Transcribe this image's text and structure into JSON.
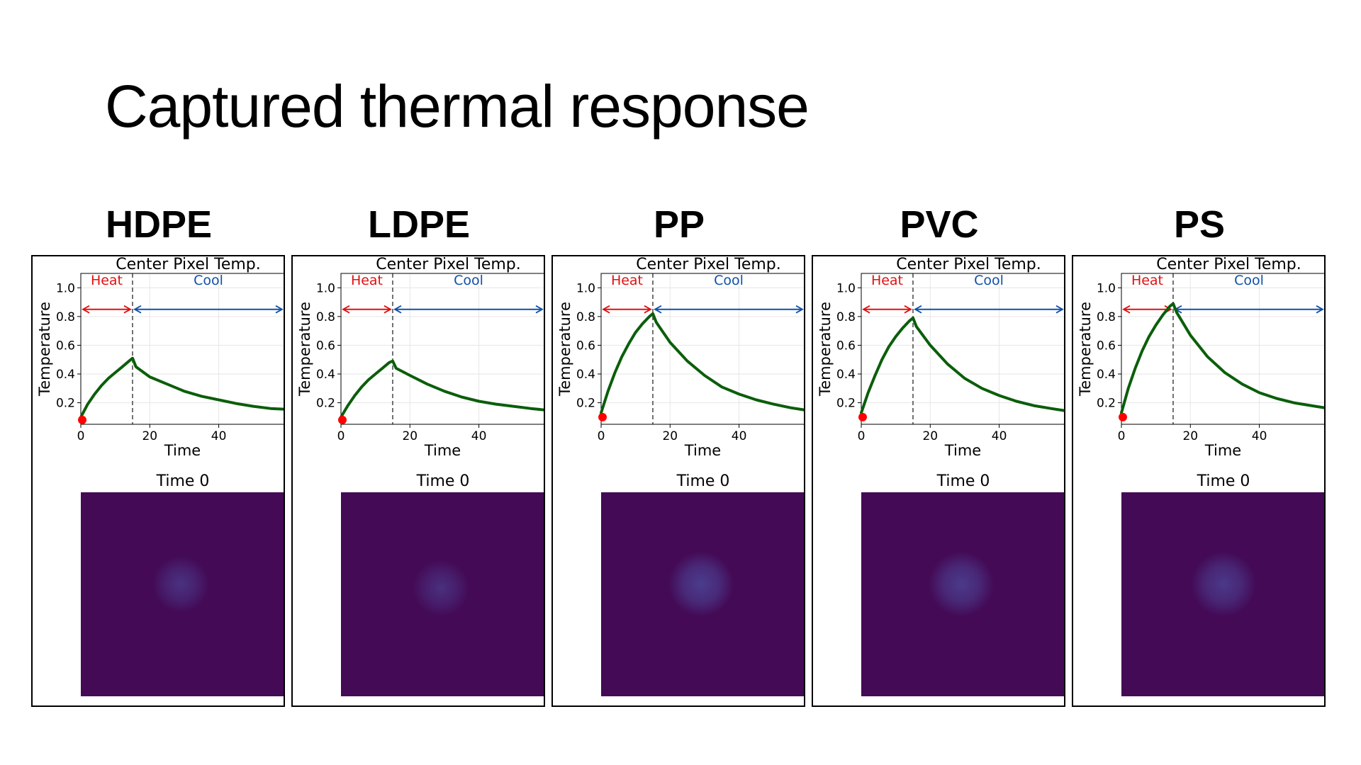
{
  "slide": {
    "title": "Captured thermal response"
  },
  "colors": {
    "curve": "#0b5e0b",
    "heat": "#e01010",
    "cool": "#1050a8",
    "marker": "#ff0000",
    "thermal_background": "#440a56",
    "thermal_spot": "#4b3e8e"
  },
  "chart_data": [
    {
      "type": "line",
      "material": "HDPE",
      "title": "Center Pixel Temp.",
      "xlabel": "Time",
      "ylabel": "Temperature",
      "xlim": [
        0,
        59
      ],
      "ylim": [
        0.05,
        1.1
      ],
      "xticks": [
        0,
        20,
        40
      ],
      "yticks": [
        0.2,
        0.4,
        0.6,
        0.8,
        1.0
      ],
      "grid": true,
      "phase_split": 15,
      "phases": {
        "heat": "Heat",
        "cool": "Cool"
      },
      "marker": {
        "x": 0,
        "y": 0.08
      },
      "series": [
        {
          "x": [
            0,
            2,
            4,
            6,
            8,
            10,
            12,
            14,
            15,
            16,
            20,
            25,
            30,
            35,
            40,
            45,
            50,
            55,
            59
          ],
          "values": [
            0.1,
            0.19,
            0.26,
            0.32,
            0.37,
            0.41,
            0.45,
            0.49,
            0.51,
            0.45,
            0.38,
            0.33,
            0.28,
            0.245,
            0.22,
            0.195,
            0.175,
            0.16,
            0.155
          ]
        }
      ],
      "image": {
        "title": "Time 0",
        "spot": {
          "cx": 0.49,
          "cy": 0.45,
          "r": 0.14,
          "intensity": 0.42
        }
      }
    },
    {
      "type": "line",
      "material": "LDPE",
      "title": "Center Pixel Temp.",
      "xlabel": "Time",
      "ylabel": "Temperature",
      "xlim": [
        0,
        59
      ],
      "ylim": [
        0.05,
        1.1
      ],
      "xticks": [
        0,
        20,
        40
      ],
      "yticks": [
        0.2,
        0.4,
        0.6,
        0.8,
        1.0
      ],
      "grid": true,
      "phase_split": 15,
      "phases": {
        "heat": "Heat",
        "cool": "Cool"
      },
      "marker": {
        "x": 0,
        "y": 0.08
      },
      "series": [
        {
          "x": [
            0,
            2,
            4,
            6,
            8,
            10,
            12,
            14,
            15,
            16,
            20,
            25,
            30,
            35,
            40,
            45,
            50,
            55,
            59
          ],
          "values": [
            0.1,
            0.18,
            0.25,
            0.31,
            0.36,
            0.4,
            0.44,
            0.48,
            0.49,
            0.44,
            0.39,
            0.33,
            0.28,
            0.24,
            0.21,
            0.19,
            0.175,
            0.16,
            0.15
          ]
        }
      ],
      "image": {
        "title": "Time 0",
        "spot": {
          "cx": 0.49,
          "cy": 0.47,
          "r": 0.14,
          "intensity": 0.38
        }
      }
    },
    {
      "type": "line",
      "material": "PP",
      "title": "Center Pixel Temp.",
      "xlabel": "Time",
      "ylabel": "Temperature",
      "xlim": [
        0,
        59
      ],
      "ylim": [
        0.05,
        1.1
      ],
      "xticks": [
        0,
        20,
        40
      ],
      "yticks": [
        0.2,
        0.4,
        0.6,
        0.8,
        1.0
      ],
      "grid": true,
      "phase_split": 15,
      "phases": {
        "heat": "Heat",
        "cool": "Cool"
      },
      "marker": {
        "x": 0,
        "y": 0.1
      },
      "series": [
        {
          "x": [
            0,
            2,
            4,
            6,
            8,
            10,
            12,
            14,
            15,
            16,
            20,
            25,
            30,
            35,
            40,
            45,
            50,
            55,
            59
          ],
          "values": [
            0.13,
            0.28,
            0.41,
            0.52,
            0.61,
            0.69,
            0.75,
            0.8,
            0.82,
            0.76,
            0.62,
            0.49,
            0.39,
            0.31,
            0.26,
            0.22,
            0.19,
            0.165,
            0.15
          ]
        }
      ],
      "image": {
        "title": "Time 0",
        "spot": {
          "cx": 0.49,
          "cy": 0.45,
          "r": 0.16,
          "intensity": 0.62
        }
      }
    },
    {
      "type": "line",
      "material": "PVC",
      "title": "Center Pixel Temp.",
      "xlabel": "Time",
      "ylabel": "Temperature",
      "xlim": [
        0,
        59
      ],
      "ylim": [
        0.05,
        1.1
      ],
      "xticks": [
        0,
        20,
        40
      ],
      "yticks": [
        0.2,
        0.4,
        0.6,
        0.8,
        1.0
      ],
      "grid": true,
      "phase_split": 15,
      "phases": {
        "heat": "Heat",
        "cool": "Cool"
      },
      "marker": {
        "x": 0,
        "y": 0.1
      },
      "series": [
        {
          "x": [
            0,
            2,
            4,
            6,
            8,
            10,
            12,
            14,
            15,
            16,
            20,
            25,
            30,
            35,
            40,
            45,
            50,
            55,
            59
          ],
          "values": [
            0.13,
            0.27,
            0.39,
            0.5,
            0.59,
            0.66,
            0.72,
            0.77,
            0.79,
            0.73,
            0.6,
            0.47,
            0.37,
            0.3,
            0.25,
            0.21,
            0.18,
            0.16,
            0.145
          ]
        }
      ],
      "image": {
        "title": "Time 0",
        "spot": {
          "cx": 0.49,
          "cy": 0.45,
          "r": 0.16,
          "intensity": 0.58
        }
      }
    },
    {
      "type": "line",
      "material": "PS",
      "title": "Center Pixel Temp.",
      "xlabel": "Time",
      "ylabel": "Temperature",
      "xlim": [
        0,
        59
      ],
      "ylim": [
        0.05,
        1.1
      ],
      "xticks": [
        0,
        20,
        40
      ],
      "yticks": [
        0.2,
        0.4,
        0.6,
        0.8,
        1.0
      ],
      "grid": true,
      "phase_split": 15,
      "phases": {
        "heat": "Heat",
        "cool": "Cool"
      },
      "marker": {
        "x": 0,
        "y": 0.1
      },
      "series": [
        {
          "x": [
            0,
            2,
            4,
            6,
            8,
            10,
            12,
            14,
            15,
            16,
            20,
            25,
            30,
            35,
            40,
            45,
            50,
            55,
            59
          ],
          "values": [
            0.13,
            0.3,
            0.44,
            0.56,
            0.66,
            0.74,
            0.81,
            0.87,
            0.89,
            0.83,
            0.67,
            0.52,
            0.41,
            0.33,
            0.27,
            0.23,
            0.2,
            0.18,
            0.165
          ]
        }
      ],
      "image": {
        "title": "Time 0",
        "spot": {
          "cx": 0.5,
          "cy": 0.45,
          "r": 0.16,
          "intensity": 0.55
        }
      }
    }
  ]
}
